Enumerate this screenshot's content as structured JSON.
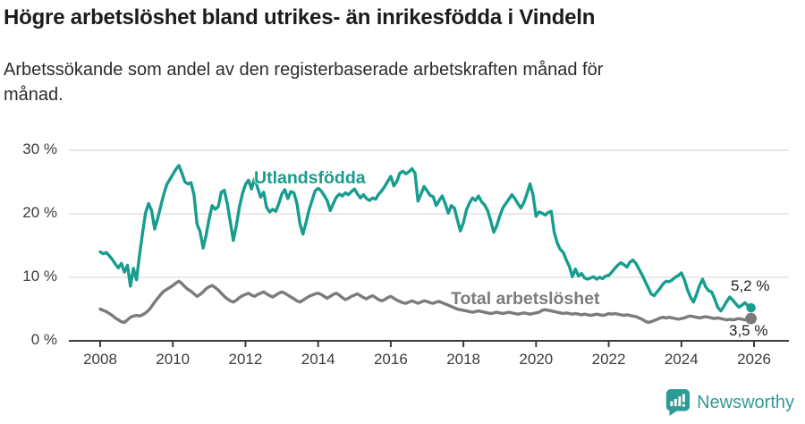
{
  "colors": {
    "accent_teal": "#169d8e",
    "series_gray": "#7b7b7b",
    "axis": "#3b3b3b",
    "grid": "#dcdcdc",
    "logo_teal": "#2f9b96",
    "title_text": "#1c1c1c"
  },
  "footer": {
    "brand": "Newsworthy"
  },
  "chart_data": {
    "type": "line",
    "title": "Högre arbetslöshet bland utrikes- än inrikesfödda i Vindeln",
    "subtitle": "Arbetssökande som andel av den registerbaserade arbetskraften månad för månad.",
    "grid": "horizontal",
    "legend": "inline-labels",
    "xlim": [
      2008,
      2026
    ],
    "ylim": [
      0,
      30
    ],
    "x_start_year": 2008,
    "x_interval_months": 1,
    "x_ticks": [
      {
        "year": 2008,
        "label": "2008"
      },
      {
        "year": 2010,
        "label": "2010"
      },
      {
        "year": 2012,
        "label": "2012"
      },
      {
        "year": 2014,
        "label": "2014"
      },
      {
        "year": 2016,
        "label": "2016"
      },
      {
        "year": 2018,
        "label": "2018"
      },
      {
        "year": 2020,
        "label": "2020"
      },
      {
        "year": 2022,
        "label": "2022"
      },
      {
        "year": 2024,
        "label": "2024"
      },
      {
        "year": 2026,
        "label": "2026"
      }
    ],
    "y_ticks": [
      {
        "value": 0,
        "label": "0 %"
      },
      {
        "value": 10,
        "label": "10 %"
      },
      {
        "value": 20,
        "label": "20 %"
      },
      {
        "value": 30,
        "label": "30 %"
      }
    ],
    "series": [
      {
        "name": "Utlandsfödda",
        "color": "#169d8e",
        "end_label": "5,2 %",
        "end_value": 5.2,
        "values": [
          14.0,
          13.7,
          13.9,
          13.4,
          12.8,
          12.1,
          11.5,
          12.2,
          10.8,
          11.9,
          8.6,
          11.4,
          9.6,
          13.5,
          17.0,
          20.2,
          21.6,
          20.5,
          17.6,
          19.3,
          21.2,
          23.1,
          24.6,
          25.4,
          26.2,
          27.0,
          27.6,
          26.4,
          25.0,
          24.7,
          24.9,
          23.0,
          18.4,
          17.2,
          14.6,
          16.6,
          19.2,
          21.3,
          20.7,
          21.1,
          23.4,
          23.7,
          21.6,
          18.7,
          15.8,
          18.2,
          21.1,
          23.2,
          24.6,
          25.3,
          23.9,
          25.6,
          24.1,
          22.6,
          23.4,
          21.0,
          20.3,
          20.7,
          20.4,
          21.6,
          23.1,
          23.8,
          22.4,
          23.5,
          23.3,
          21.6,
          18.4,
          16.8,
          18.6,
          20.6,
          22.1,
          23.6,
          24.0,
          23.6,
          22.9,
          22.1,
          20.5,
          21.6,
          22.6,
          23.1,
          22.8,
          23.3,
          23.0,
          23.5,
          23.9,
          23.1,
          22.5,
          23.0,
          22.4,
          22.1,
          22.5,
          22.3,
          23.1,
          23.6,
          24.3,
          25.1,
          25.9,
          24.4,
          25.1,
          26.4,
          26.7,
          26.3,
          26.6,
          27.1,
          26.4,
          22.0,
          23.1,
          24.3,
          23.6,
          22.9,
          22.7,
          21.3,
          22.1,
          22.8,
          21.6,
          20.1,
          21.3,
          20.9,
          19.1,
          17.3,
          18.6,
          20.6,
          21.7,
          22.5,
          22.1,
          22.8,
          21.9,
          21.4,
          20.5,
          18.9,
          17.1,
          18.1,
          19.6,
          20.9,
          21.6,
          22.3,
          23.0,
          22.4,
          21.6,
          20.9,
          21.8,
          23.2,
          24.7,
          23.0,
          19.6,
          20.3,
          20.1,
          19.8,
          20.2,
          20.4,
          17.1,
          15.4,
          14.4,
          13.9,
          12.7,
          11.7,
          10.1,
          11.3,
          10.2,
          10.6,
          9.9,
          9.7,
          9.9,
          10.1,
          9.7,
          10.0,
          9.8,
          10.2,
          10.3,
          10.8,
          11.4,
          11.9,
          12.3,
          12.0,
          11.6,
          12.4,
          12.7,
          12.2,
          11.3,
          10.4,
          9.4,
          8.4,
          7.4,
          7.1,
          7.7,
          8.3,
          9.0,
          9.4,
          9.3,
          9.6,
          10.0,
          10.3,
          10.7,
          9.6,
          8.1,
          6.9,
          6.1,
          7.3,
          8.7,
          9.7,
          8.5,
          7.9,
          7.7,
          6.6,
          5.3,
          4.7,
          5.4,
          6.2,
          6.9,
          6.4,
          5.8,
          5.3,
          5.6,
          6.0,
          5.5,
          5.2
        ]
      },
      {
        "name": "Total arbetslöshet",
        "color": "#7b7b7b",
        "end_label": "3,5 %",
        "end_value": 3.5,
        "values": [
          5.0,
          4.8,
          4.6,
          4.3,
          4.0,
          3.6,
          3.3,
          3.0,
          2.9,
          3.3,
          3.7,
          3.9,
          4.0,
          3.9,
          4.1,
          4.4,
          4.8,
          5.4,
          6.1,
          6.7,
          7.3,
          7.8,
          8.1,
          8.4,
          8.7,
          9.1,
          9.4,
          9.0,
          8.5,
          8.1,
          7.8,
          7.4,
          7.0,
          7.3,
          7.7,
          8.2,
          8.5,
          8.7,
          8.4,
          8.0,
          7.5,
          7.0,
          6.6,
          6.3,
          6.1,
          6.4,
          6.8,
          7.1,
          7.3,
          7.5,
          7.2,
          7.0,
          7.3,
          7.5,
          7.7,
          7.4,
          7.1,
          6.9,
          7.2,
          7.5,
          7.7,
          7.5,
          7.2,
          6.9,
          6.6,
          6.3,
          6.1,
          6.4,
          6.7,
          7.0,
          7.2,
          7.4,
          7.5,
          7.3,
          7.0,
          6.7,
          7.0,
          7.3,
          7.5,
          7.2,
          6.8,
          6.5,
          6.7,
          7.0,
          7.2,
          7.4,
          7.1,
          6.8,
          6.6,
          6.9,
          7.1,
          6.8,
          6.5,
          6.3,
          6.5,
          6.8,
          7.0,
          6.7,
          6.4,
          6.2,
          6.0,
          5.9,
          6.1,
          6.3,
          6.1,
          5.9,
          6.1,
          6.3,
          6.2,
          6.0,
          5.9,
          6.1,
          6.2,
          6.0,
          5.8,
          5.6,
          5.4,
          5.2,
          5.0,
          4.9,
          4.8,
          4.7,
          4.6,
          4.5,
          4.6,
          4.7,
          4.6,
          4.5,
          4.4,
          4.3,
          4.4,
          4.5,
          4.4,
          4.3,
          4.4,
          4.5,
          4.4,
          4.3,
          4.2,
          4.3,
          4.4,
          4.3,
          4.2,
          4.3,
          4.4,
          4.5,
          4.8,
          4.9,
          4.8,
          4.7,
          4.6,
          4.5,
          4.4,
          4.3,
          4.4,
          4.3,
          4.2,
          4.3,
          4.2,
          4.1,
          4.2,
          4.1,
          4.0,
          4.1,
          4.2,
          4.1,
          4.0,
          4.1,
          4.3,
          4.2,
          4.3,
          4.2,
          4.1,
          4.0,
          4.1,
          4.0,
          3.9,
          3.8,
          3.6,
          3.4,
          3.1,
          2.9,
          3.0,
          3.2,
          3.4,
          3.6,
          3.7,
          3.6,
          3.7,
          3.6,
          3.5,
          3.4,
          3.5,
          3.6,
          3.8,
          3.9,
          3.8,
          3.7,
          3.6,
          3.7,
          3.8,
          3.7,
          3.6,
          3.5,
          3.6,
          3.5,
          3.4,
          3.3,
          3.4,
          3.3,
          3.4,
          3.5,
          3.4,
          3.3,
          3.4,
          3.5
        ]
      }
    ]
  }
}
